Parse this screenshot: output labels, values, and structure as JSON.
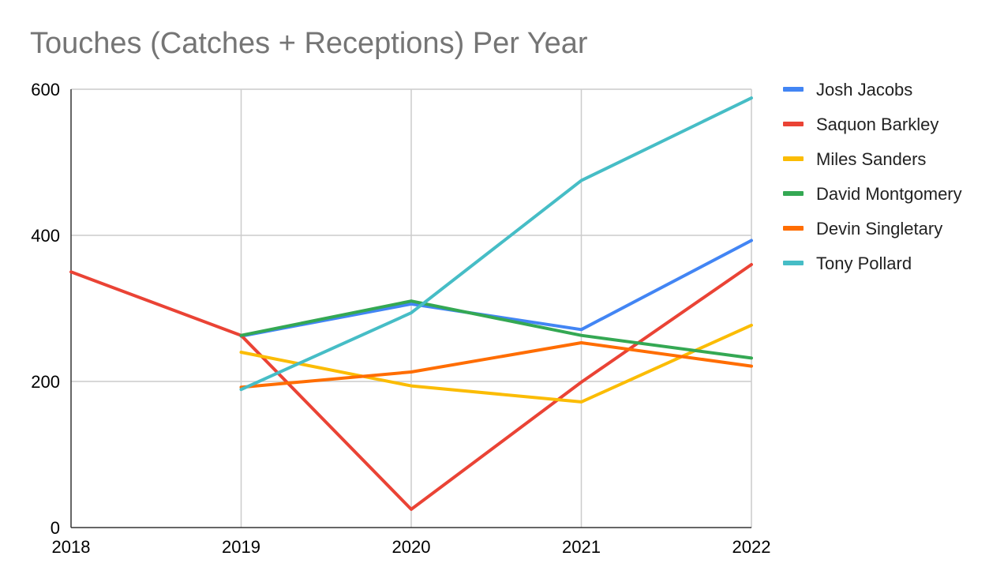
{
  "chart_data": {
    "type": "line",
    "title": "Touches (Catches + Receptions) Per Year",
    "xlabel": "",
    "ylabel": "",
    "x": [
      2018,
      2019,
      2020,
      2021,
      2022
    ],
    "xlim": [
      2018,
      2022
    ],
    "ylim": [
      0,
      600
    ],
    "yticks": [
      0,
      200,
      400,
      600
    ],
    "grid": true,
    "legend_position": "right",
    "series": [
      {
        "name": "Josh Jacobs",
        "color": "#4285F4",
        "values": [
          null,
          262,
          306,
          271,
          393
        ]
      },
      {
        "name": "Saquon Barkley",
        "color": "#EA4335",
        "values": [
          350,
          263,
          25,
          199,
          360
        ]
      },
      {
        "name": "Miles Sanders",
        "color": "#FBBC04",
        "values": [
          null,
          240,
          194,
          172,
          277
        ]
      },
      {
        "name": "David Montgomery",
        "color": "#34A853",
        "values": [
          null,
          263,
          310,
          263,
          232
        ]
      },
      {
        "name": "Devin Singletary",
        "color": "#FF6D01",
        "values": [
          null,
          192,
          213,
          253,
          221
        ]
      },
      {
        "name": "Tony Pollard",
        "color": "#46BDC6",
        "values": [
          null,
          189,
          294,
          475,
          588
        ]
      }
    ]
  }
}
